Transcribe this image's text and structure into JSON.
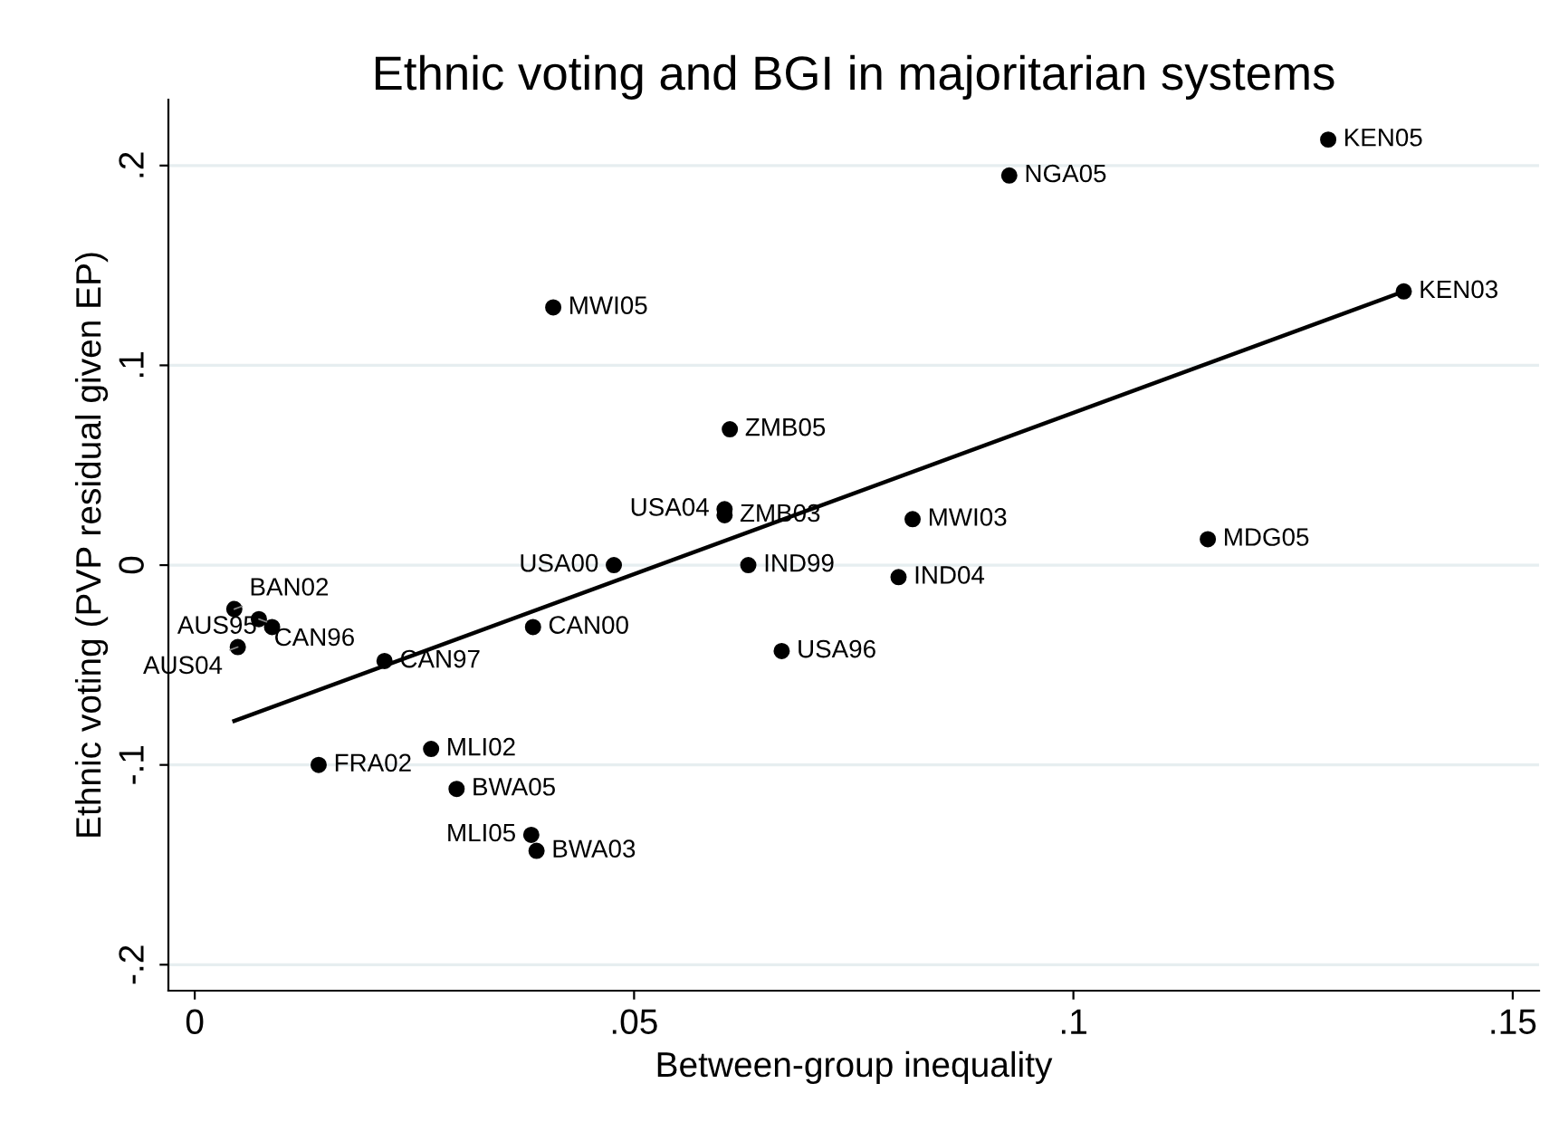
{
  "chart_data": {
    "type": "scatter",
    "title": "Ethnic voting and BGI in majoritarian systems",
    "xlabel": "Between-group inequality",
    "ylabel": "Ethnic voting (PVP residual given EP)",
    "xlim": [
      -0.003,
      0.153
    ],
    "ylim": [
      -0.213,
      0.233
    ],
    "xticks": [
      {
        "value": 0,
        "label": "0"
      },
      {
        "value": 0.05,
        "label": ".05"
      },
      {
        "value": 0.1,
        "label": ".1"
      },
      {
        "value": 0.15,
        "label": ".15"
      }
    ],
    "yticks": [
      {
        "value": -0.2,
        "label": "-.2"
      },
      {
        "value": -0.1,
        "label": "-.1"
      },
      {
        "value": 0,
        "label": "0"
      },
      {
        "value": 0.1,
        "label": ".1"
      },
      {
        "value": 0.2,
        "label": ".2"
      }
    ],
    "grid": "y",
    "marker": "circle",
    "legend": false,
    "series": [
      {
        "color": "#000000",
        "x": [
          0.129,
          0.0927,
          0.1376,
          0.0408,
          0.0609,
          0.0603,
          0.0603,
          0.0817,
          0.1153,
          0.0477,
          0.063,
          0.0801,
          0.0385,
          0.0668,
          0.0045,
          0.0073,
          0.0088,
          0.0049,
          0.0216,
          0.0269,
          0.0141,
          0.0298,
          0.0383,
          0.0389
        ],
        "values": [
          0.213,
          0.195,
          0.137,
          0.129,
          0.068,
          0.028,
          0.025,
          0.023,
          0.013,
          0.0,
          0.0,
          -0.006,
          -0.031,
          -0.043,
          -0.022,
          -0.027,
          -0.031,
          -0.041,
          -0.048,
          -0.092,
          -0.1,
          -0.112,
          -0.135,
          -0.143
        ]
      },
      {
        "type": "line",
        "marker": "none",
        "color": "#000000",
        "x": [
          0.0045,
          0.1376
        ],
        "values": [
          -0.078,
          0.137
        ]
      }
    ],
    "annotations": [
      {
        "text": "KEN05",
        "x": 0.129,
        "y": 0.213
      },
      {
        "text": "NGA05",
        "x": 0.0927,
        "y": 0.195
      },
      {
        "text": "KEN03",
        "x": 0.1376,
        "y": 0.137
      },
      {
        "text": "MWI05",
        "x": 0.0408,
        "y": 0.129
      },
      {
        "text": "ZMB05",
        "x": 0.0609,
        "y": 0.068
      },
      {
        "text": "USA04",
        "x": 0.0603,
        "y": 0.028
      },
      {
        "text": "ZMB03",
        "x": 0.0603,
        "y": 0.025
      },
      {
        "text": "MWI03",
        "x": 0.0817,
        "y": 0.023
      },
      {
        "text": "MDG05",
        "x": 0.1153,
        "y": 0.013
      },
      {
        "text": "USA00",
        "x": 0.0477,
        "y": 0.0
      },
      {
        "text": "IND99",
        "x": 0.063,
        "y": 0.0
      },
      {
        "text": "IND04",
        "x": 0.0801,
        "y": -0.006
      },
      {
        "text": "CAN00",
        "x": 0.0385,
        "y": -0.031
      },
      {
        "text": "USA96",
        "x": 0.0668,
        "y": -0.043
      },
      {
        "text": "BAN02",
        "x": 0.0045,
        "y": -0.022
      },
      {
        "text": "CAN96",
        "x": 0.0073,
        "y": -0.027
      },
      {
        "text": "AUS95",
        "x": 0.0088,
        "y": -0.031
      },
      {
        "text": "AUS04",
        "x": 0.0049,
        "y": -0.041
      },
      {
        "text": "CAN97",
        "x": 0.0216,
        "y": -0.048
      },
      {
        "text": "MLI02",
        "x": 0.0269,
        "y": -0.092
      },
      {
        "text": "FRA02",
        "x": 0.0141,
        "y": -0.1
      },
      {
        "text": "BWA05",
        "x": 0.0298,
        "y": -0.112
      },
      {
        "text": "MLI05",
        "x": 0.0383,
        "y": -0.135
      },
      {
        "text": "BWA03",
        "x": 0.0389,
        "y": -0.143
      }
    ]
  }
}
